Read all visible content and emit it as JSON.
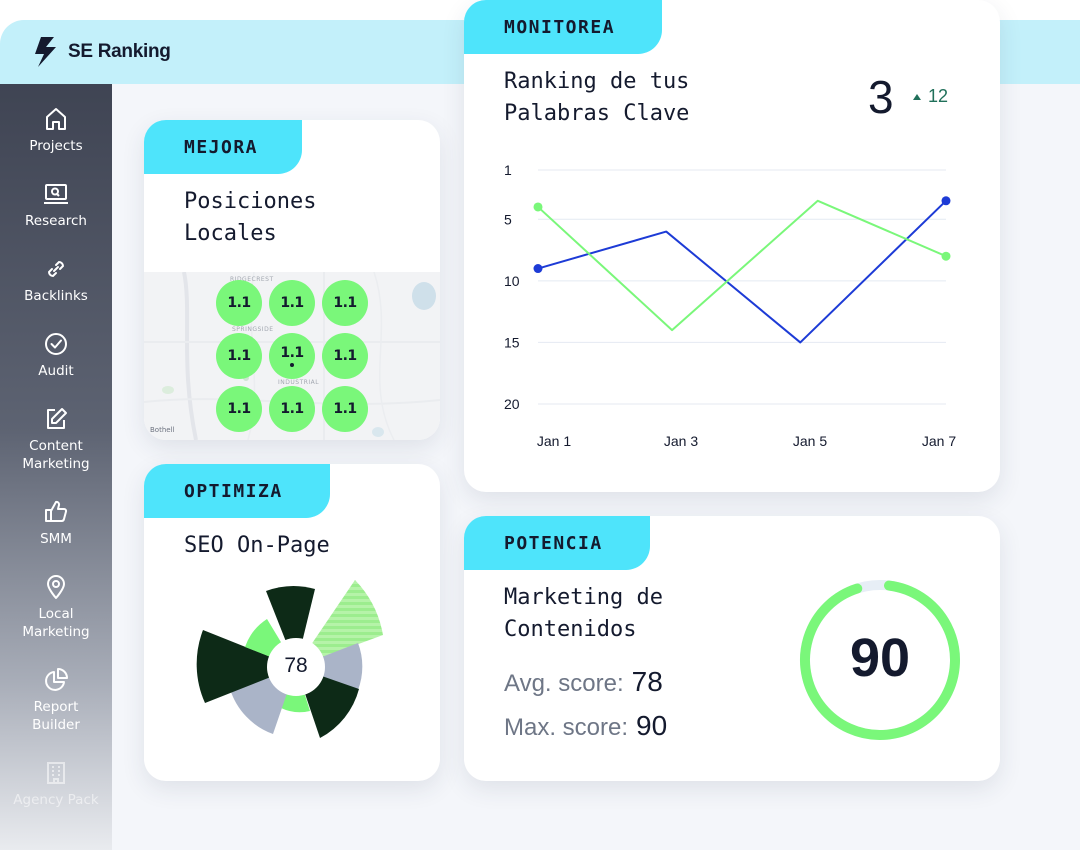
{
  "app": {
    "logo_name": "SE Ranking"
  },
  "sidebar": {
    "items": [
      {
        "label": "Projects",
        "icon": "home-icon"
      },
      {
        "label": "Research",
        "icon": "laptop-search-icon"
      },
      {
        "label": "Backlinks",
        "icon": "link-icon"
      },
      {
        "label": "Audit",
        "icon": "check-circle-icon"
      },
      {
        "label": "Content Marketing",
        "icon": "edit-icon"
      },
      {
        "label": "SMM",
        "icon": "thumbs-up-icon"
      },
      {
        "label": "Local Marketing",
        "icon": "map-pin-icon"
      },
      {
        "label": "Report Builder",
        "icon": "pie-chart-icon"
      },
      {
        "label": "Agency Pack",
        "icon": "building-icon"
      }
    ]
  },
  "cards": {
    "local": {
      "tag": "MEJORA",
      "title": "Posiciones Locales",
      "pin_value": "1.1",
      "pins": [
        "1.1",
        "1.1",
        "1.1",
        "1.1",
        "1.1",
        "1.1",
        "1.1",
        "1.1",
        "1.1"
      ],
      "map_labels": [
        "RIDGECREST",
        "SPRINGSIDE",
        "INDUSTRIAL",
        "Bothell"
      ]
    },
    "onpage": {
      "tag": "OPTIMIZA",
      "title": "SEO On-Page",
      "center_value": "78"
    },
    "ranking": {
      "tag": "MONITOREA",
      "title": "Ranking de tus Palabras Clave",
      "position": "3",
      "change": "12"
    },
    "content": {
      "tag": "POTENCIA",
      "title": "Marketing de Contenidos",
      "avg_label": "Avg. score:",
      "avg_value": "78",
      "max_label": "Max. score:",
      "max_value": "90",
      "gauge_value": "90",
      "gauge_fraction": 0.97
    }
  },
  "colors": {
    "accent_cyan": "#4ee4fb",
    "green": "#7af77a",
    "dark_green": "#0d2a17",
    "blue_line": "#1d3bd6",
    "gray_slice": "#aab4c8",
    "delta_green": "#20705a"
  },
  "chart_data": {
    "type": "line",
    "categories": [
      "Jan 1",
      "Jan 3",
      "Jan 5",
      "Jan 7"
    ],
    "x": [
      0,
      2,
      3.5,
      4.75,
      6,
      7
    ],
    "yticks": [
      "1",
      "5",
      "10",
      "15",
      "20"
    ],
    "ylim": [
      1,
      20
    ],
    "y_inverted": true,
    "series": [
      {
        "name": "blue",
        "color": "#1d3bd6",
        "x": [
          0,
          2.2,
          4.5,
          7
        ],
        "values": [
          9,
          6,
          15,
          3.5
        ],
        "markers_on_endpoints": true
      },
      {
        "name": "green",
        "color": "#7af77a",
        "x": [
          0,
          2.3,
          4.8,
          7
        ],
        "values": [
          4,
          14,
          3.5,
          8
        ],
        "markers_on_endpoints": true
      }
    ]
  }
}
